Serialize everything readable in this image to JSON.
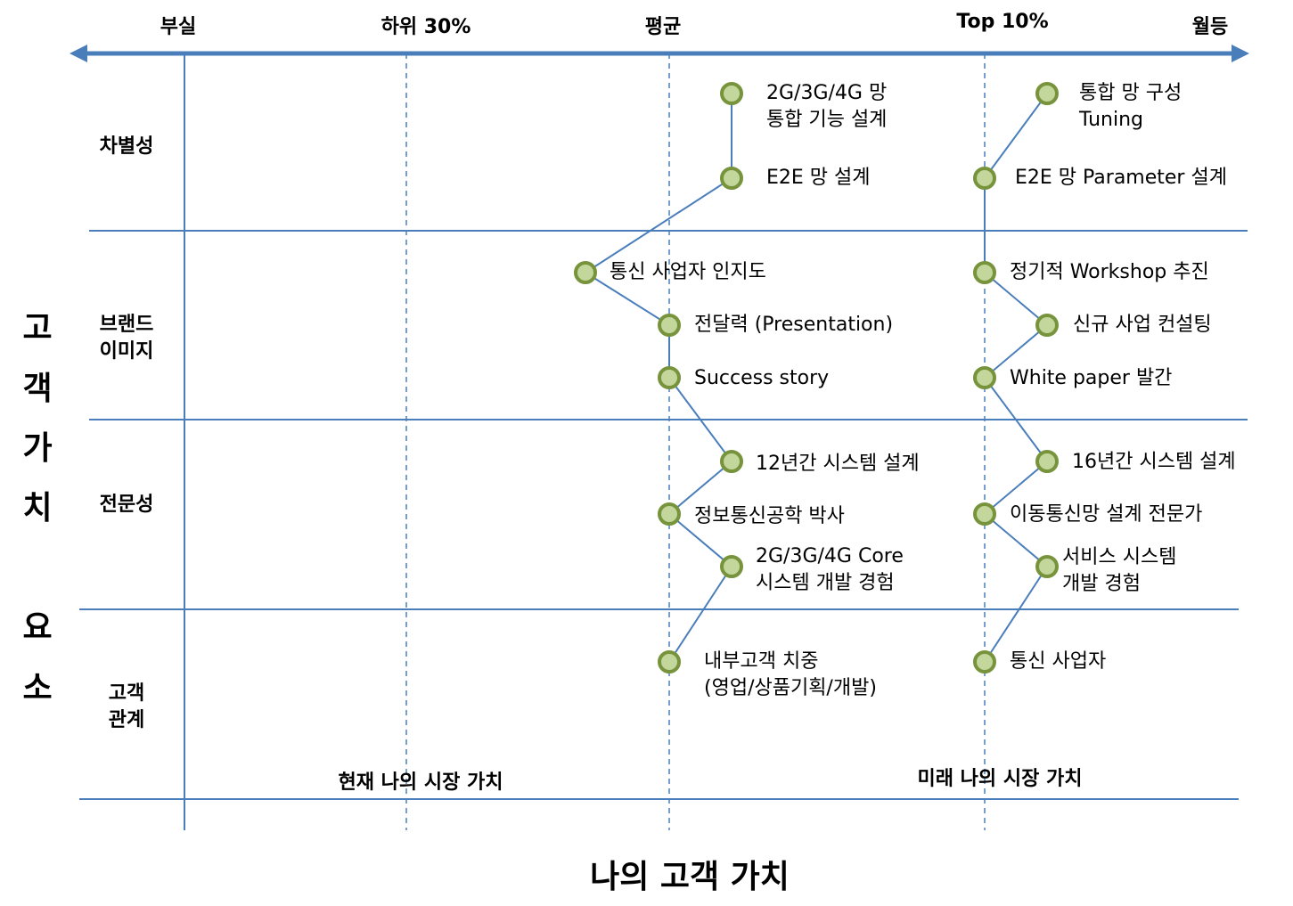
{
  "x_axis": {
    "title": "나의 고객 가치",
    "levels": [
      "부실",
      "하위 30%",
      "평균",
      "Top 10%",
      "월등"
    ]
  },
  "y_axis": {
    "title_chars": [
      "고",
      "객",
      "가",
      "치",
      "요",
      "소"
    ],
    "categories": [
      "차별성",
      "브랜드\n이미지",
      "전문성",
      "고객\n관계"
    ]
  },
  "columns": {
    "current": "현재 나의 시장 가치",
    "future": "미래 나의 시장 가치"
  },
  "colors": {
    "axis": "#4a7ebb",
    "grid": "#4a7ebb",
    "node_fill": "#c3d69b",
    "node_stroke": "#77933c"
  },
  "current_items": [
    "2G/3G/4G 망\n통합 기능 설계",
    "E2E 망 설계",
    "통신 사업자 인지도",
    "전달력 (Presentation)",
    "Success story",
    "12년간 시스템 설계",
    "정보통신공학 박사",
    "2G/3G/4G Core\n시스템 개발 경험",
    "내부고객 치중\n(영업/상품기획/개발)"
  ],
  "future_items": [
    "통합 망 구성\nTuning",
    "E2E 망 Parameter 설계",
    "정기적 Workshop 추진",
    "신규 사업 컨설팅",
    "White paper 발간",
    "16년간  시스템 설계",
    "이동통신망 설계 전문가",
    "서비스 시스템\n개발 경험",
    "통신 사업자"
  ]
}
